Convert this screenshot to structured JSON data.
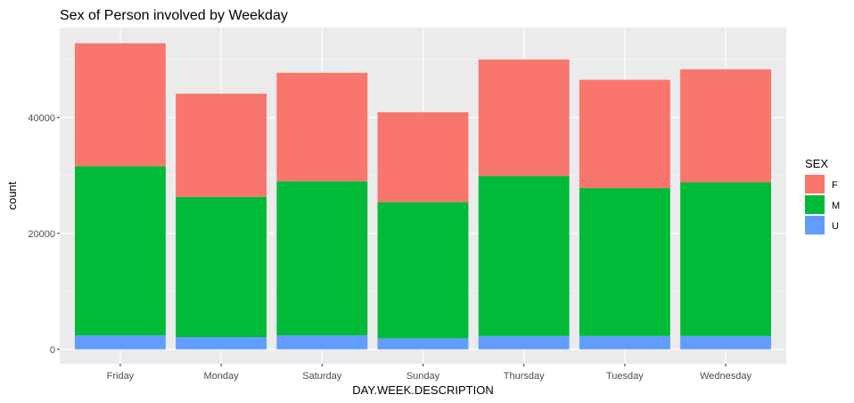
{
  "chart_data": {
    "type": "bar",
    "stacked": true,
    "title": "Sex of Person involved by Weekday",
    "xlabel": "DAY.WEEK.DESCRIPTION",
    "ylabel": "count",
    "categories": [
      "Friday",
      "Monday",
      "Saturday",
      "Sunday",
      "Thursday",
      "Tuesday",
      "Wednesday"
    ],
    "series": [
      {
        "name": "U",
        "color": "#619CFF",
        "values": [
          2400,
          2100,
          2400,
          1900,
          2300,
          2300,
          2300
        ]
      },
      {
        "name": "M",
        "color": "#00BA38",
        "values": [
          29200,
          24200,
          26600,
          23500,
          27600,
          25500,
          26500
        ]
      },
      {
        "name": "F",
        "color": "#F8766D",
        "values": [
          21200,
          17800,
          18700,
          15500,
          20100,
          18700,
          19500
        ]
      }
    ],
    "ylim": [
      -2500,
      55500
    ],
    "yticks": [
      0,
      20000,
      40000
    ],
    "ytick_labels": [
      "0",
      "20000",
      "40000"
    ],
    "grid": true,
    "background": "#EBEBEB",
    "legend": {
      "title": "SEX",
      "position": "right",
      "entries": [
        {
          "label": "F",
          "color": "#F8766D"
        },
        {
          "label": "M",
          "color": "#00BA38"
        },
        {
          "label": "U",
          "color": "#619CFF"
        }
      ]
    }
  }
}
